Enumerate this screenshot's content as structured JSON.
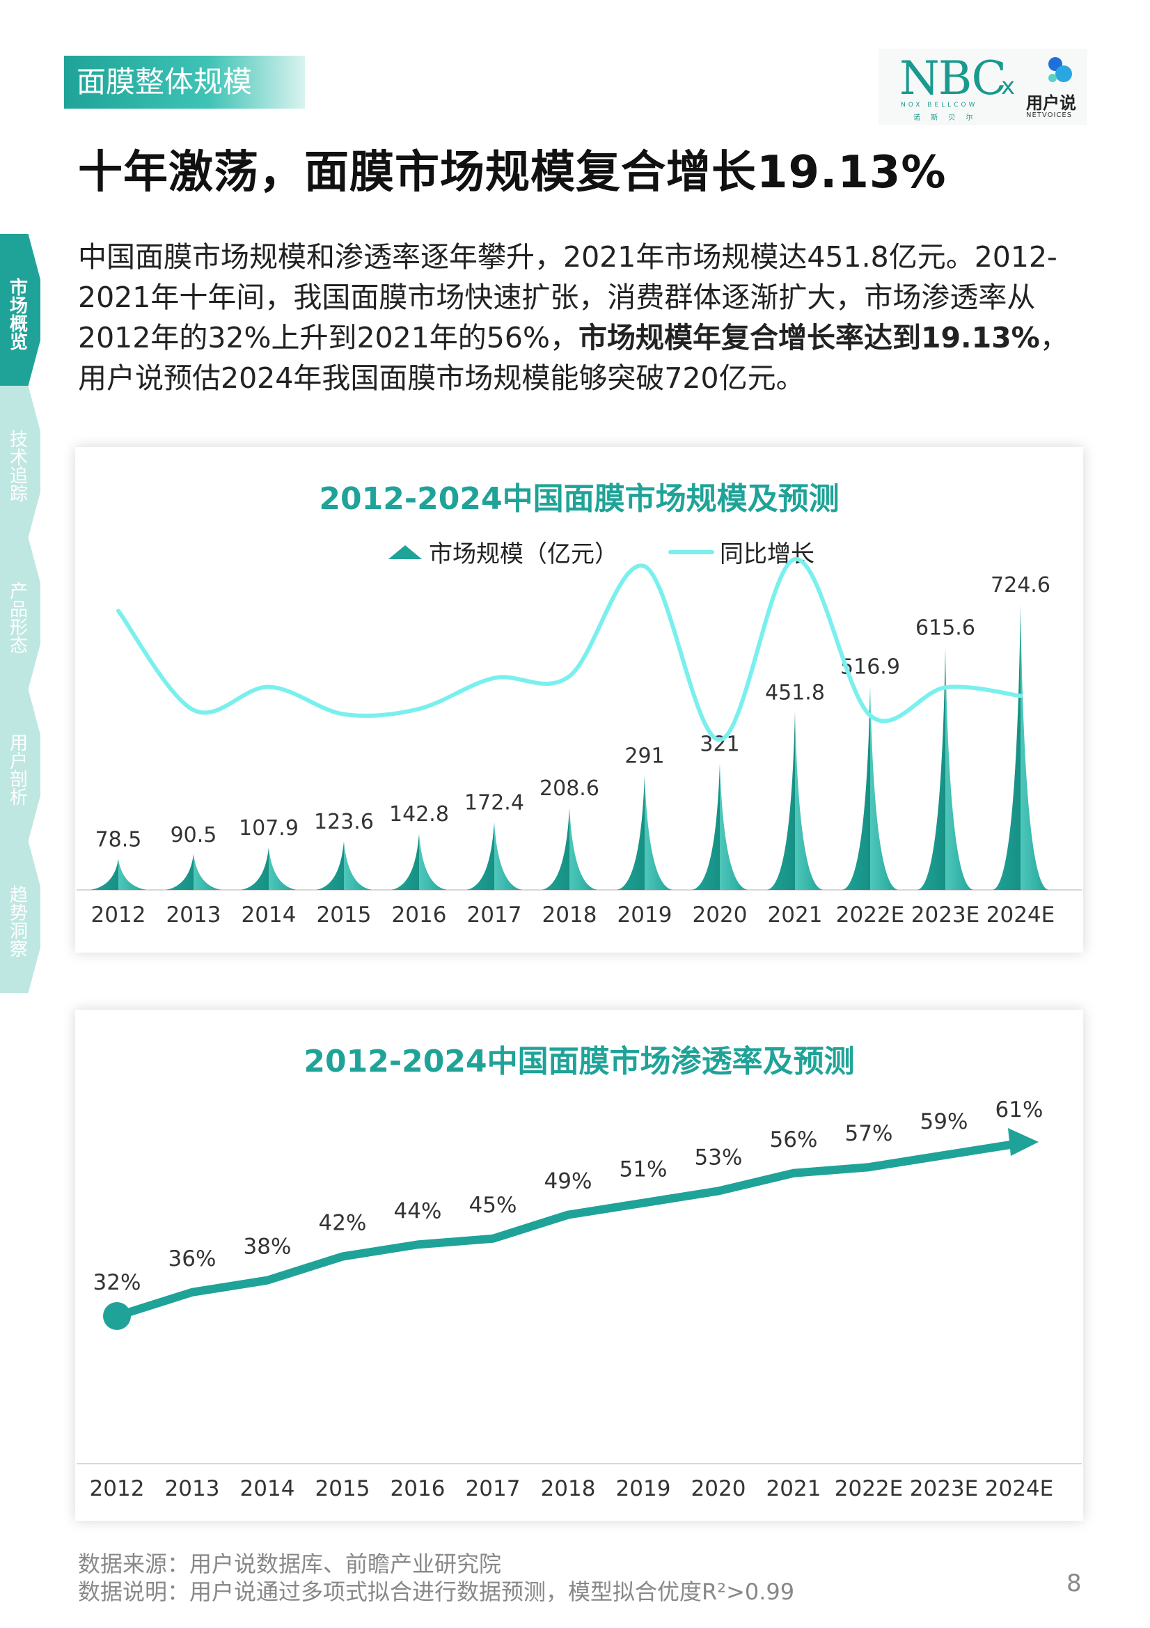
{
  "section_tag": "面膜整体规模",
  "logos": {
    "nbc": "NBC",
    "nbc_sub": "NOX BELLCOW",
    "nbc_sub2": "诺 斯 贝 尔",
    "separator": "x",
    "partner": "用户说",
    "partner_sub": "NETVOICES"
  },
  "headline": "十年激荡，面膜市场规模复合增长19.13%",
  "side_nav": [
    {
      "label": "市场概览",
      "active": true
    },
    {
      "label": "技术追踪",
      "active": false
    },
    {
      "label": "产品形态",
      "active": false
    },
    {
      "label": "用户剖析",
      "active": false
    },
    {
      "label": "趋势洞察",
      "active": false
    }
  ],
  "intro": {
    "part1": "中国面膜市场规模和渗透率逐年攀升，2021年市场规模达451.8亿元。2012-2021年十年间，我国面膜市场快速扩张，消费群体逐渐扩大，市场渗透率从2012年的32%上升到2021年的56%，",
    "bold": "市场规模年复合增长率达到19.13%",
    "part2": "，用户说预估2024年我国面膜市场规模能够突破720亿元。"
  },
  "colors": {
    "primary": "#1fa398",
    "line": "#7af0ee",
    "light": "#bfe7e2"
  },
  "chart_data": [
    {
      "type": "bar",
      "title": "2012-2024中国面膜市场规模及预测",
      "categories": [
        "2012",
        "2013",
        "2014",
        "2015",
        "2016",
        "2017",
        "2018",
        "2019",
        "2020",
        "2021",
        "2022E",
        "2023E",
        "2024E"
      ],
      "series": [
        {
          "name": "市场规模（亿元）",
          "values": [
            78.5,
            90.5,
            107.9,
            123.6,
            142.8,
            172.4,
            208.6,
            291,
            321,
            451.8,
            516.9,
            615.6,
            724.6
          ],
          "labels": [
            "78.5",
            "90.5",
            "107.9",
            "123.6",
            "142.8",
            "172.4",
            "208.6",
            "291",
            "321",
            "451.8",
            "516.9",
            "615.6",
            "724.6"
          ]
        },
        {
          "name": "同比增长",
          "type": "line",
          "values": [
            null,
            15.3,
            19.2,
            14.6,
            15.5,
            20.7,
            21.0,
            39.5,
            10.3,
            40.7,
            14.4,
            19.1,
            17.7
          ]
        }
      ],
      "ylim": [
        0,
        760
      ],
      "legend": "top-center"
    },
    {
      "type": "line",
      "title": "2012-2024中国面膜市场渗透率及预测",
      "categories": [
        "2012",
        "2013",
        "2014",
        "2015",
        "2016",
        "2017",
        "2018",
        "2019",
        "2020",
        "2021",
        "2022E",
        "2023E",
        "2024E"
      ],
      "values": [
        32,
        36,
        38,
        42,
        44,
        45,
        49,
        51,
        53,
        56,
        57,
        59,
        61
      ],
      "labels": [
        "32%",
        "36%",
        "38%",
        "42%",
        "44%",
        "45%",
        "49%",
        "51%",
        "53%",
        "56%",
        "57%",
        "59%",
        "61%"
      ],
      "ylim": [
        20,
        65
      ]
    }
  ],
  "footer": {
    "source": "数据来源：用户说数据库、前瞻产业研究院",
    "note": "数据说明：用户说通过多项式拟合进行数据预测，模型拟合优度R²>0.99"
  },
  "page_number": "8"
}
